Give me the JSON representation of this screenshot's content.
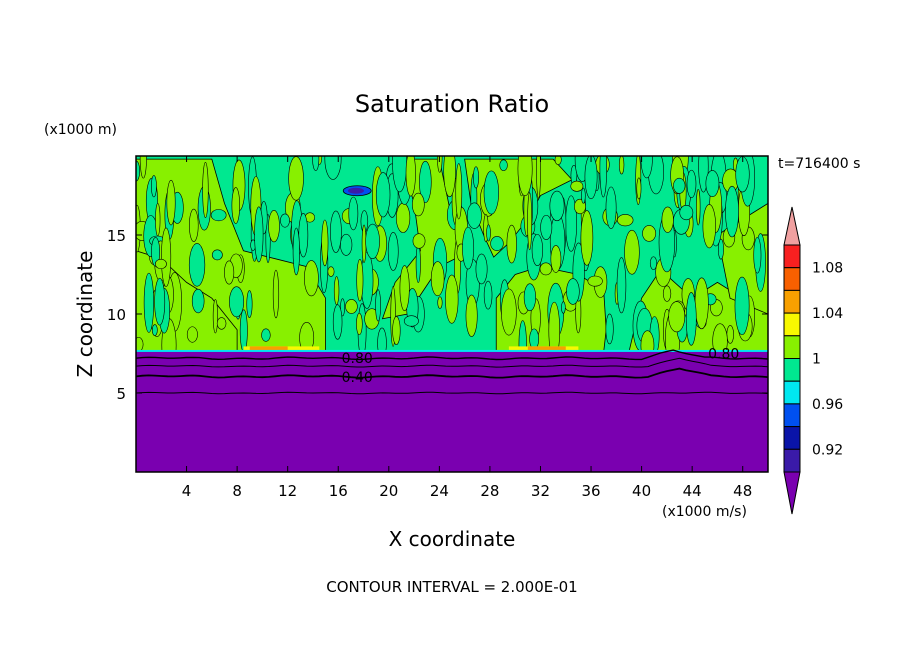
{
  "chart_data": {
    "type": "contour",
    "title": "Saturation Ratio",
    "xlabel": "X coordinate",
    "ylabel": "Z coordinate",
    "x_unit": "(x1000 m/s)",
    "y_unit": "(x1000 m)",
    "time_label": "t=716400 s",
    "footer": "CONTOUR INTERVAL = 2.000E-01",
    "xlim": [
      0,
      50
    ],
    "ylim": [
      0,
      20
    ],
    "x_ticks": [
      "4",
      "8",
      "12",
      "16",
      "20",
      "24",
      "28",
      "32",
      "36",
      "40",
      "44",
      "48"
    ],
    "x_tick_values": [
      4,
      8,
      12,
      16,
      20,
      24,
      28,
      32,
      36,
      40,
      44,
      48
    ],
    "y_ticks": [
      "5",
      "10",
      "15"
    ],
    "y_tick_values": [
      5,
      10,
      15
    ],
    "contour_labels": [
      {
        "text": "0.80",
        "x": 17.5,
        "z": 7.2
      },
      {
        "text": "0.40",
        "x": 17.5,
        "z": 6.0
      },
      {
        "text": "0.80",
        "x": 46.5,
        "z": 7.5
      }
    ],
    "colorbar": {
      "levels": [
        0.9,
        0.92,
        0.94,
        0.96,
        0.98,
        1.0,
        1.02,
        1.04,
        1.06,
        1.08,
        1.1
      ],
      "colors": [
        "#7a00b0",
        "#3a1aa8",
        "#0a14a8",
        "#0050f0",
        "#00e8f0",
        "#00e890",
        "#88f000",
        "#f8f800",
        "#f8a000",
        "#f86000",
        "#f82020",
        "#f0a0a0"
      ],
      "tick_labels": [
        "0.92",
        "0.96",
        "1",
        "1.04",
        "1.08"
      ],
      "tick_values": [
        0.92,
        0.96,
        1.0,
        1.04,
        1.08
      ]
    },
    "regions": {
      "stable_layer_top_z": 7.6,
      "background_color": "#00e890",
      "cloud_color": "#88f000",
      "stable_color": "#7a00b0"
    }
  }
}
